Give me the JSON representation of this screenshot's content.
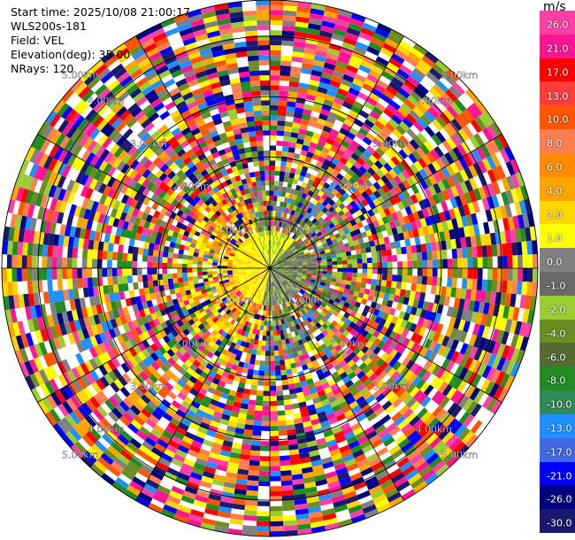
{
  "info": {
    "start_time": "Start time: 2025/10/08 21:00:17",
    "station": "WLS200s-181",
    "field": "Field: VEL",
    "elevation": "Elevation(deg): 35.00",
    "nrays": "NRays: 120"
  },
  "chart_data": {
    "type": "heatmap",
    "projection": "polar-ppi",
    "field": "VEL",
    "units": "m/s",
    "elevation_deg": 35.0,
    "n_rays": 120,
    "range_rings": [
      {
        "label": "1.00km",
        "km": 1.0
      },
      {
        "label": "2.00km",
        "km": 2.0
      },
      {
        "label": "3.00km",
        "km": 3.0
      },
      {
        "label": "4.00km",
        "km": 4.0
      },
      {
        "label": "5.00km",
        "km": 5.0
      }
    ],
    "max_range_km": 5.0,
    "colorbar": {
      "title": "m/s",
      "levels": [
        {
          "label": "26.0",
          "color": "#ff3fa6"
        },
        {
          "label": "21.0",
          "color": "#ff1493"
        },
        {
          "label": "17.0",
          "color": "#ff0000"
        },
        {
          "label": "13.0",
          "color": "#ff3c3c"
        },
        {
          "label": "10.0",
          "color": "#ff5500"
        },
        {
          "label": "8.0",
          "color": "#ff7f50"
        },
        {
          "label": "6.0",
          "color": "#ff8c00"
        },
        {
          "label": "4.0",
          "color": "#ffa500"
        },
        {
          "label": "2.0",
          "color": "#ffd700"
        },
        {
          "label": "1.0",
          "color": "#ffff00"
        },
        {
          "label": "0.0",
          "color": "#808080"
        },
        {
          "label": "-1.0",
          "color": "#696969"
        },
        {
          "label": "-2.0",
          "color": "#9acd32"
        },
        {
          "label": "-4.0",
          "color": "#6b8e23"
        },
        {
          "label": "-6.0",
          "color": "#556b2f"
        },
        {
          "label": "-8.0",
          "color": "#228b22"
        },
        {
          "label": "-10.0",
          "color": "#2e8b57"
        },
        {
          "label": "-13.0",
          "color": "#1e90ff"
        },
        {
          "label": "-17.0",
          "color": "#4169e1"
        },
        {
          "label": "-21.0",
          "color": "#0000ff"
        },
        {
          "label": "-26.0",
          "color": "#000080"
        },
        {
          "label": "-30.0",
          "color": "#191970"
        }
      ]
    }
  }
}
